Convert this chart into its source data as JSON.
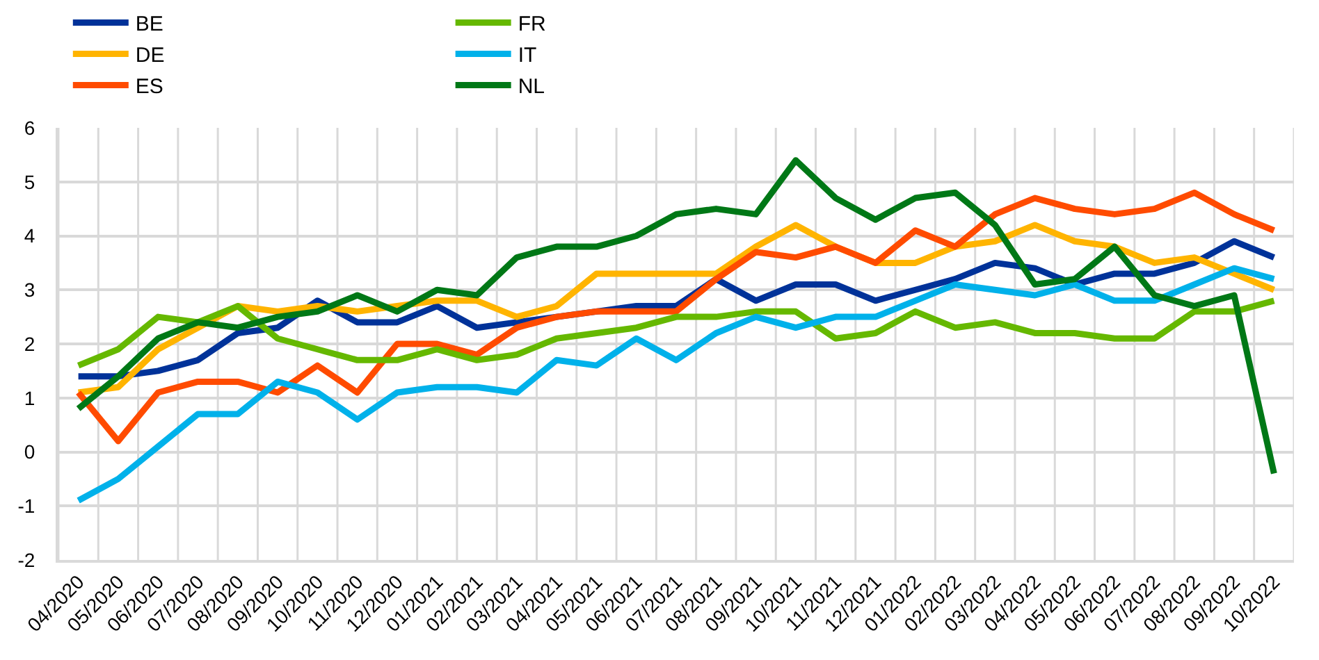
{
  "chart_data": {
    "type": "line",
    "categories": [
      "04/2020",
      "05/2020",
      "06/2020",
      "07/2020",
      "08/2020",
      "09/2020",
      "10/2020",
      "11/2020",
      "12/2020",
      "01/2021",
      "02/2021",
      "03/2021",
      "04/2021",
      "05/2021",
      "06/2021",
      "07/2021",
      "08/2021",
      "09/2021",
      "10/2021",
      "11/2021",
      "12/2021",
      "01/2022",
      "02/2022",
      "03/2022",
      "04/2022",
      "05/2022",
      "06/2022",
      "07/2022",
      "08/2022",
      "09/2022",
      "10/2022"
    ],
    "series": [
      {
        "name": "BE",
        "color": "#003299",
        "values": [
          1.4,
          1.4,
          1.5,
          1.7,
          2.2,
          2.3,
          2.8,
          2.4,
          2.4,
          2.7,
          2.3,
          2.4,
          2.5,
          2.6,
          2.7,
          2.7,
          3.2,
          2.8,
          3.1,
          3.1,
          2.8,
          3.0,
          3.2,
          3.5,
          3.4,
          3.1,
          3.3,
          3.3,
          3.5,
          3.9,
          3.6
        ]
      },
      {
        "name": "DE",
        "color": "#ffb400",
        "values": [
          1.1,
          1.2,
          1.9,
          2.3,
          2.7,
          2.6,
          2.7,
          2.6,
          2.7,
          2.8,
          2.8,
          2.5,
          2.7,
          3.3,
          3.3,
          3.3,
          3.3,
          3.8,
          4.2,
          3.8,
          3.5,
          3.5,
          3.8,
          3.9,
          4.2,
          3.9,
          3.8,
          3.5,
          3.6,
          3.3,
          3.0
        ]
      },
      {
        "name": "ES",
        "color": "#ff4b00",
        "values": [
          1.1,
          0.2,
          1.1,
          1.3,
          1.3,
          1.1,
          1.6,
          1.1,
          2.0,
          2.0,
          1.8,
          2.3,
          2.5,
          2.6,
          2.6,
          2.6,
          3.2,
          3.7,
          3.6,
          3.8,
          3.5,
          4.1,
          3.8,
          4.4,
          4.7,
          4.5,
          4.4,
          4.5,
          4.8,
          4.4,
          4.1
        ]
      },
      {
        "name": "FR",
        "color": "#65b800",
        "values": [
          1.6,
          1.9,
          2.5,
          2.4,
          2.7,
          2.1,
          1.9,
          1.7,
          1.7,
          1.9,
          1.7,
          1.8,
          2.1,
          2.2,
          2.3,
          2.5,
          2.5,
          2.6,
          2.6,
          2.1,
          2.2,
          2.6,
          2.3,
          2.4,
          2.2,
          2.2,
          2.1,
          2.1,
          2.6,
          2.6,
          2.8
        ]
      },
      {
        "name": "IT",
        "color": "#00b1ea",
        "values": [
          -0.9,
          -0.5,
          0.1,
          0.7,
          0.7,
          1.3,
          1.1,
          0.6,
          1.1,
          1.2,
          1.2,
          1.1,
          1.7,
          1.6,
          2.1,
          1.7,
          2.2,
          2.5,
          2.3,
          2.5,
          2.5,
          2.8,
          3.1,
          3.0,
          2.9,
          3.1,
          2.8,
          2.8,
          3.1,
          3.4,
          3.2
        ]
      },
      {
        "name": "NL",
        "color": "#007816",
        "values": [
          0.8,
          1.4,
          2.1,
          2.4,
          2.3,
          2.5,
          2.6,
          2.9,
          2.6,
          3.0,
          2.9,
          3.6,
          3.8,
          3.8,
          4.0,
          4.4,
          4.5,
          4.4,
          5.4,
          4.7,
          4.3,
          4.7,
          4.8,
          4.2,
          3.1,
          3.2,
          3.8,
          2.9,
          2.7,
          2.9,
          -0.4
        ]
      }
    ],
    "ylim": [
      -2,
      6
    ],
    "yticks": [
      -2,
      -1,
      0,
      1,
      2,
      3,
      4,
      5,
      6
    ],
    "grid": true,
    "legend": "top left",
    "marker": "none",
    "line_style": "solid"
  }
}
